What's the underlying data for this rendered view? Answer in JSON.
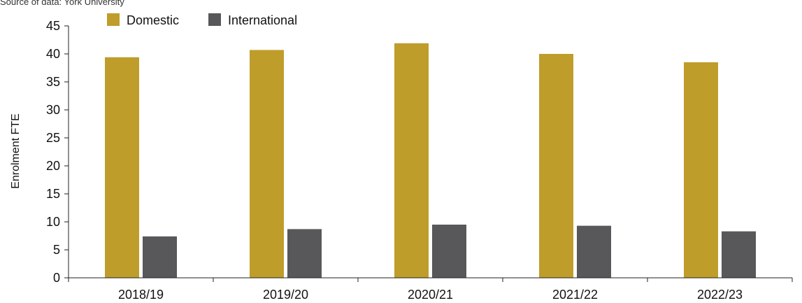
{
  "source_note": "Source of data: York University",
  "chart_data": {
    "type": "bar",
    "title": "",
    "xlabel": "",
    "ylabel": "Enrolment FTE",
    "ylim": [
      0,
      45
    ],
    "yticks": [
      0,
      5,
      10,
      15,
      20,
      25,
      30,
      35,
      40,
      45
    ],
    "categories": [
      "2018/19",
      "2019/20",
      "2020/21",
      "2021/22",
      "2022/23"
    ],
    "series": [
      {
        "name": "Domestic",
        "color": "#BF9D2B",
        "values": [
          39.4,
          40.7,
          41.9,
          40.0,
          38.5
        ]
      },
      {
        "name": "International",
        "color": "#58585A",
        "values": [
          7.4,
          8.7,
          9.5,
          9.3,
          8.3
        ]
      }
    ],
    "legend_position": "top-left",
    "grid": false
  }
}
